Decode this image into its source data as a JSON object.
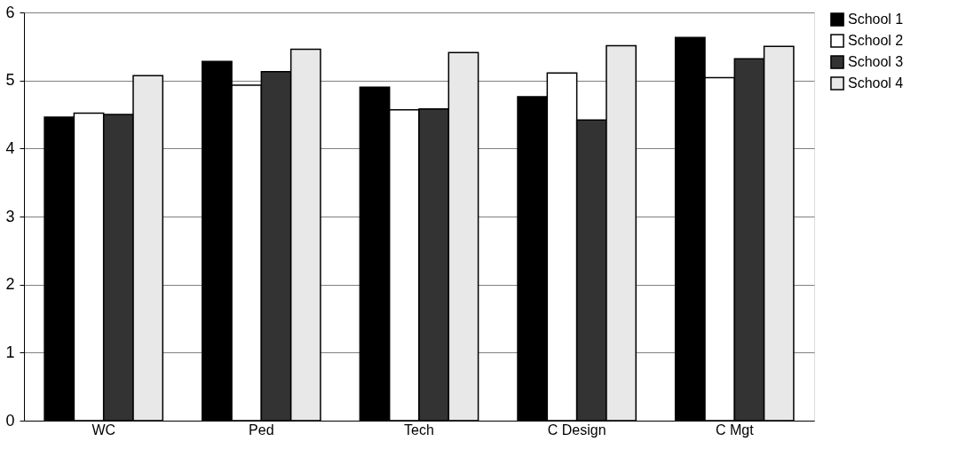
{
  "chart_data": {
    "type": "bar",
    "categories": [
      "WC",
      "Ped",
      "Tech",
      "C Design",
      "C Mgt"
    ],
    "series": [
      {
        "name": "School 1",
        "color": "#000000",
        "values": [
          4.46,
          5.28,
          4.9,
          4.76,
          5.63
        ]
      },
      {
        "name": "School 2",
        "color": "#ffffff",
        "values": [
          4.52,
          4.93,
          4.57,
          5.11,
          5.04
        ]
      },
      {
        "name": "School 3",
        "color": "#333333",
        "values": [
          4.5,
          5.13,
          4.58,
          4.42,
          5.32
        ]
      },
      {
        "name": "School 4",
        "color": "#e8e8e8",
        "values": [
          5.07,
          5.46,
          5.41,
          5.51,
          5.5
        ]
      }
    ],
    "ylim": [
      0,
      6
    ],
    "yticks": [
      0,
      1,
      2,
      3,
      4,
      5,
      6
    ],
    "grid": "y",
    "legend": "right"
  }
}
